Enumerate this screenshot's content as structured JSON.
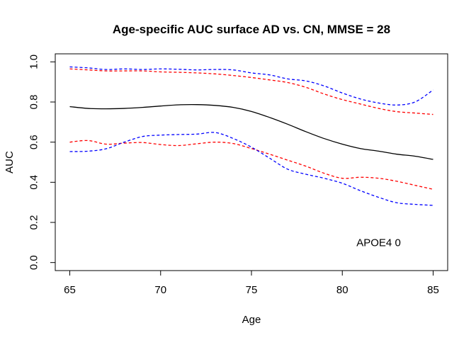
{
  "chart_data": {
    "type": "line",
    "title": "Age-specific AUC surface AD vs. CN, MMSE = 28",
    "xlabel": "Age",
    "ylabel": "AUC",
    "xlim": [
      64.2,
      85.8
    ],
    "ylim": [
      -0.04,
      1.04
    ],
    "xticks": [
      65,
      70,
      75,
      80,
      85
    ],
    "yticks": [
      0.0,
      0.2,
      0.4,
      0.6,
      0.8,
      1.0
    ],
    "ytick_labels": [
      "0.0",
      "0.2",
      "0.4",
      "0.6",
      "0.8",
      "1.0"
    ],
    "grid": false,
    "annotation": {
      "text": "APOE4 0",
      "x": 82,
      "y": 0.1
    },
    "series": [
      {
        "color": "#000000",
        "dash": "solid",
        "x": [
          65,
          66,
          67,
          68,
          69,
          70,
          71,
          72,
          73,
          74,
          75,
          76,
          77,
          78,
          79,
          80,
          81,
          82,
          83,
          84,
          85
        ],
        "values": [
          0.777,
          0.768,
          0.766,
          0.768,
          0.773,
          0.78,
          0.786,
          0.787,
          0.783,
          0.773,
          0.753,
          0.723,
          0.689,
          0.652,
          0.618,
          0.59,
          0.568,
          0.555,
          0.54,
          0.53,
          0.514
        ]
      },
      {
        "color": "#0000ff",
        "dash": "dashed",
        "x": [
          65,
          66,
          67,
          68,
          69,
          70,
          71,
          72,
          73,
          74,
          75,
          76,
          77,
          78,
          79,
          80,
          81,
          82,
          83,
          84,
          85
        ],
        "values": [
          0.975,
          0.97,
          0.962,
          0.965,
          0.962,
          0.965,
          0.963,
          0.96,
          0.962,
          0.96,
          0.945,
          0.935,
          0.915,
          0.905,
          0.88,
          0.845,
          0.815,
          0.795,
          0.785,
          0.8,
          0.86
        ]
      },
      {
        "color": "#ff0000",
        "dash": "dashed",
        "x": [
          65,
          66,
          67,
          68,
          69,
          70,
          71,
          72,
          73,
          74,
          75,
          76,
          77,
          78,
          79,
          80,
          81,
          82,
          83,
          84,
          85
        ],
        "values": [
          0.965,
          0.96,
          0.955,
          0.955,
          0.955,
          0.95,
          0.948,
          0.945,
          0.94,
          0.932,
          0.922,
          0.91,
          0.897,
          0.873,
          0.84,
          0.812,
          0.79,
          0.768,
          0.752,
          0.745,
          0.738
        ]
      },
      {
        "color": "#ff0000",
        "dash": "dashed",
        "x": [
          65,
          66,
          67,
          68,
          69,
          70,
          71,
          72,
          73,
          74,
          75,
          76,
          77,
          78,
          79,
          80,
          81,
          82,
          83,
          84,
          85
        ],
        "values": [
          0.6,
          0.608,
          0.59,
          0.595,
          0.598,
          0.588,
          0.583,
          0.592,
          0.6,
          0.593,
          0.568,
          0.54,
          0.51,
          0.48,
          0.445,
          0.42,
          0.425,
          0.42,
          0.405,
          0.385,
          0.365
        ]
      },
      {
        "color": "#0000ff",
        "dash": "dashed",
        "x": [
          65,
          66,
          67,
          68,
          69,
          70,
          71,
          72,
          73,
          74,
          75,
          76,
          77,
          78,
          79,
          80,
          81,
          82,
          83,
          84,
          85
        ],
        "values": [
          0.553,
          0.555,
          0.567,
          0.6,
          0.628,
          0.635,
          0.638,
          0.64,
          0.648,
          0.618,
          0.575,
          0.52,
          0.465,
          0.44,
          0.42,
          0.395,
          0.358,
          0.325,
          0.298,
          0.29,
          0.285
        ]
      }
    ]
  }
}
